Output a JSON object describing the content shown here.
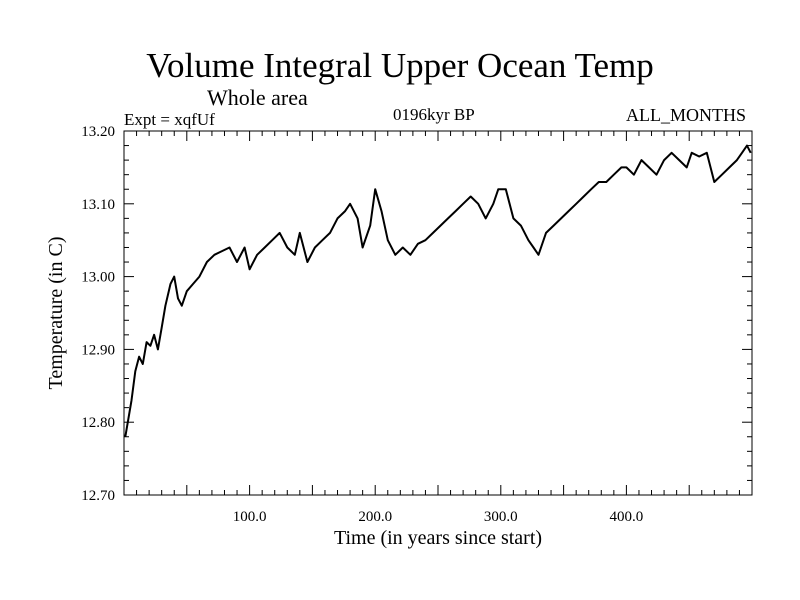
{
  "chart_data": {
    "type": "line",
    "title": "Volume Integral Upper Ocean Temp",
    "subtitle": "Whole area",
    "annotations": {
      "experiment": "Expt = xqfUf",
      "period": "0196kyr BP",
      "months": "ALL_MONTHS"
    },
    "xlabel": "Time (in years since start)",
    "ylabel": "Temperature (in C)",
    "xlim": [
      0,
      500
    ],
    "ylim": [
      12.7,
      13.2
    ],
    "xticks": [
      100,
      200,
      300,
      400
    ],
    "xtick_labels": [
      "100.0",
      "200.0",
      "300.0",
      "400.0"
    ],
    "yticks": [
      12.7,
      12.8,
      12.9,
      13.0,
      13.1,
      13.2
    ],
    "ytick_labels": [
      "12.70",
      "12.80",
      "12.90",
      "13.00",
      "13.10",
      "13.20"
    ],
    "grid": false,
    "series": [
      {
        "name": "Temperature",
        "x": [
          1,
          3,
          6,
          9,
          12,
          15,
          18,
          21,
          24,
          27,
          30,
          33,
          37,
          40,
          43,
          46,
          50,
          55,
          60,
          66,
          72,
          78,
          84,
          90,
          96,
          100,
          106,
          112,
          118,
          124,
          130,
          136,
          140,
          146,
          152,
          158,
          164,
          170,
          176,
          180,
          186,
          190,
          196,
          200,
          205,
          210,
          216,
          222,
          228,
          234,
          240,
          246,
          252,
          258,
          264,
          270,
          276,
          282,
          288,
          294,
          298,
          304,
          310,
          316,
          322,
          326,
          330,
          336,
          342,
          348,
          354,
          360,
          366,
          372,
          378,
          384,
          390,
          396,
          400,
          406,
          412,
          418,
          424,
          430,
          436,
          442,
          448,
          452,
          458,
          464,
          470,
          476,
          482,
          488,
          492,
          496,
          499
        ],
        "values": [
          12.78,
          12.8,
          12.83,
          12.87,
          12.89,
          12.88,
          12.91,
          12.905,
          12.92,
          12.9,
          12.93,
          12.96,
          12.99,
          13.0,
          12.97,
          12.96,
          12.98,
          12.99,
          13.0,
          13.02,
          13.03,
          13.035,
          13.04,
          13.02,
          13.04,
          13.01,
          13.03,
          13.04,
          13.05,
          13.06,
          13.04,
          13.03,
          13.06,
          13.02,
          13.04,
          13.05,
          13.06,
          13.08,
          13.09,
          13.1,
          13.08,
          13.04,
          13.07,
          13.12,
          13.09,
          13.05,
          13.03,
          13.04,
          13.03,
          13.045,
          13.05,
          13.06,
          13.07,
          13.08,
          13.09,
          13.1,
          13.11,
          13.1,
          13.08,
          13.1,
          13.12,
          13.12,
          13.08,
          13.07,
          13.05,
          13.04,
          13.03,
          13.06,
          13.07,
          13.08,
          13.09,
          13.1,
          13.11,
          13.12,
          13.13,
          13.13,
          13.14,
          13.15,
          13.15,
          13.14,
          13.16,
          13.15,
          13.14,
          13.16,
          13.17,
          13.16,
          13.15,
          13.17,
          13.165,
          13.17,
          13.13,
          13.14,
          13.15,
          13.16,
          13.17,
          13.18,
          13.17
        ]
      }
    ]
  }
}
